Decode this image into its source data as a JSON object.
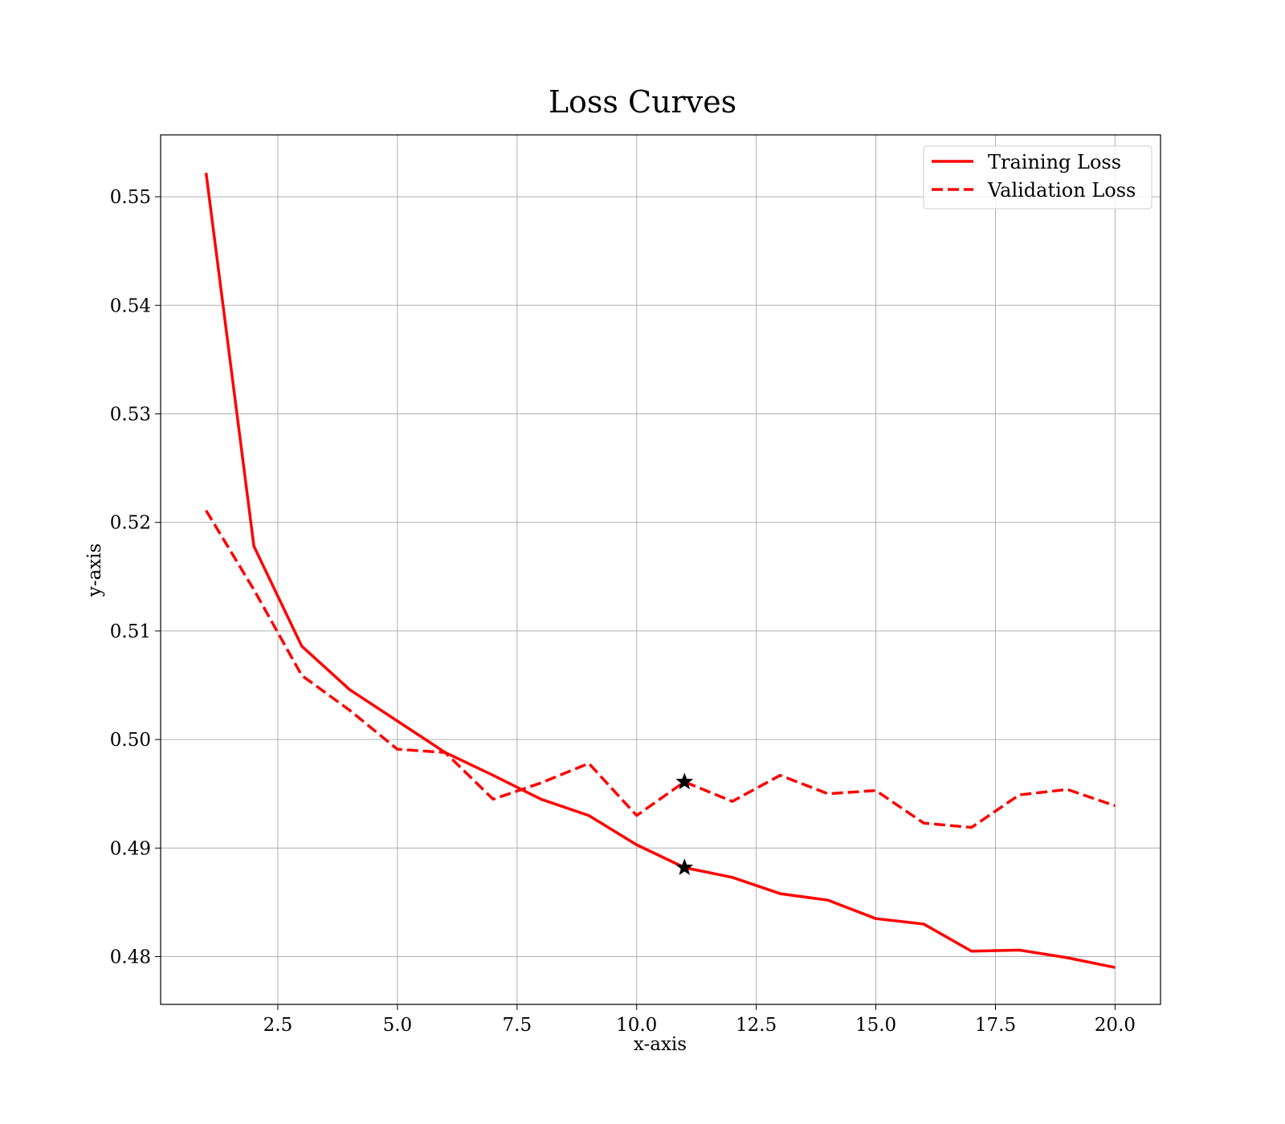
{
  "chart_data": {
    "type": "line",
    "title": "Loss Curves",
    "xlabel": "x-axis",
    "ylabel": "y-axis",
    "xlim": [
      0.05,
      20.95
    ],
    "ylim": [
      0.4756,
      0.5557
    ],
    "xticks": [
      2.5,
      5.0,
      7.5,
      10.0,
      12.5,
      15.0,
      17.5,
      20.0
    ],
    "xtick_labels": [
      "2.5",
      "5.0",
      "7.5",
      "10.0",
      "12.5",
      "15.0",
      "17.5",
      "20.0"
    ],
    "yticks": [
      0.48,
      0.49,
      0.5,
      0.51,
      0.52,
      0.53,
      0.54,
      0.55
    ],
    "ytick_labels": [
      "0.48",
      "0.49",
      "0.50",
      "0.51",
      "0.52",
      "0.53",
      "0.54",
      "0.55"
    ],
    "grid": true,
    "legend_position": "top-right",
    "x": [
      1,
      2,
      3,
      4,
      5,
      6,
      7,
      8,
      9,
      10,
      11,
      12,
      13,
      14,
      15,
      16,
      17,
      18,
      19,
      20
    ],
    "series": [
      {
        "name": "Training Loss",
        "style": "solid",
        "color": "#ff0000",
        "values": [
          0.5522,
          0.5178,
          0.5086,
          0.5046,
          0.5017,
          0.4988,
          0.4967,
          0.4945,
          0.493,
          0.4903,
          0.4882,
          0.4873,
          0.4858,
          0.4852,
          0.4835,
          0.483,
          0.4805,
          0.4806,
          0.4799,
          0.479
        ]
      },
      {
        "name": "Validation Loss",
        "style": "dashed",
        "color": "#ff0000",
        "values": [
          0.5211,
          0.5138,
          0.5059,
          0.5027,
          0.4991,
          0.4988,
          0.4945,
          0.496,
          0.4978,
          0.493,
          0.4961,
          0.4943,
          0.4967,
          0.495,
          0.4953,
          0.4923,
          0.4919,
          0.4949,
          0.4954,
          0.4939
        ]
      }
    ],
    "markers": [
      {
        "series": "Training Loss",
        "x": 11,
        "y": 0.4882,
        "symbol": "star",
        "color": "#000000"
      },
      {
        "series": "Validation Loss",
        "x": 11,
        "y": 0.4961,
        "symbol": "star",
        "color": "#000000"
      }
    ]
  }
}
